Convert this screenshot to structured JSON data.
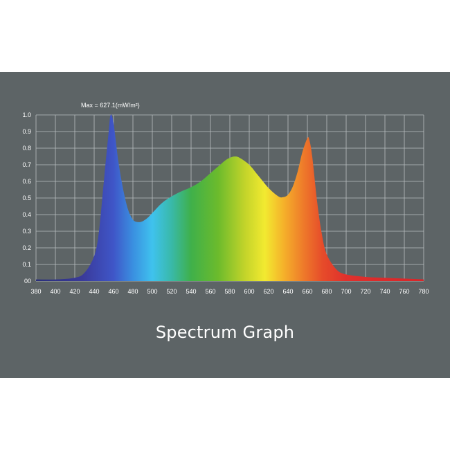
{
  "chart_data": {
    "type": "area",
    "title": "Spectrum Graph",
    "annotation": "Max = 627.1(mW/m²)",
    "xlabel": "",
    "ylabel": "",
    "xlim": [
      380,
      780
    ],
    "ylim": [
      0,
      1.0
    ],
    "x_ticks": [
      380,
      400,
      420,
      440,
      460,
      480,
      500,
      520,
      540,
      560,
      580,
      600,
      620,
      640,
      660,
      680,
      700,
      720,
      740,
      760,
      780
    ],
    "y_tick_labels": [
      "00",
      "0.1",
      "0.2",
      "0.3",
      "0.4",
      "0.5",
      "0.6",
      "0.7",
      "0.8",
      "0.9",
      "1.0"
    ],
    "grid": true,
    "fill": "visible-spectrum gradient",
    "series": [
      {
        "x": [
          380,
          400,
          420,
          430,
          440,
          445,
          450,
          455,
          457,
          460,
          465,
          470,
          475,
          480,
          485,
          490,
          495,
          500,
          510,
          520,
          530,
          540,
          550,
          560,
          570,
          575,
          580,
          585,
          590,
          600,
          610,
          620,
          630,
          635,
          640,
          645,
          650,
          655,
          660,
          662,
          665,
          670,
          675,
          680,
          690,
          700,
          720,
          740,
          760,
          780
        ],
        "y": [
          0.01,
          0.01,
          0.02,
          0.05,
          0.15,
          0.3,
          0.6,
          0.9,
          1.0,
          0.95,
          0.72,
          0.55,
          0.43,
          0.37,
          0.355,
          0.36,
          0.38,
          0.41,
          0.47,
          0.51,
          0.54,
          0.565,
          0.6,
          0.65,
          0.7,
          0.725,
          0.742,
          0.75,
          0.742,
          0.7,
          0.63,
          0.56,
          0.51,
          0.505,
          0.52,
          0.57,
          0.66,
          0.78,
          0.86,
          0.85,
          0.75,
          0.48,
          0.28,
          0.16,
          0.07,
          0.04,
          0.025,
          0.02,
          0.015,
          0.01
        ]
      }
    ]
  }
}
